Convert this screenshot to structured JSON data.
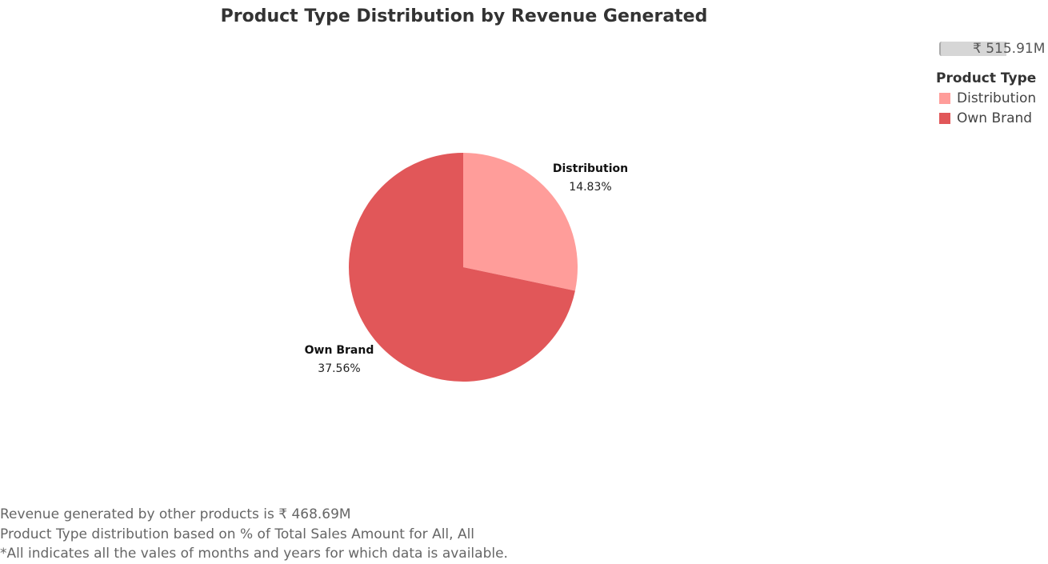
{
  "chart_data": {
    "type": "pie",
    "title": "Product Type Distribution by Revenue Generated",
    "size_legend_value": "₹ 515.91M",
    "legend_title": "Product Type",
    "series": [
      {
        "name": "Distribution",
        "value": 14.83,
        "label": "14.83%",
        "color": "#ff9d9a"
      },
      {
        "name": "Own Brand",
        "value": 37.56,
        "label": "37.56%",
        "color": "#e15759"
      }
    ],
    "legend_placement": "top-right"
  },
  "footnotes": [
    "Revenue generated by other products is ₹ 468.69M",
    "Product Type distribution based on % of Total Sales Amount for All, All",
    "*All indicates all the vales of months and years for which data is available."
  ]
}
